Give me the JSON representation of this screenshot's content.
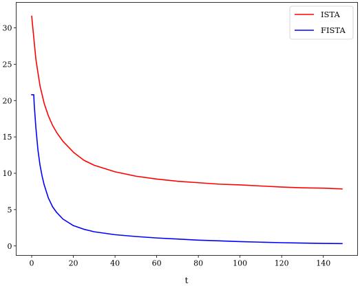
{
  "chart_data": {
    "type": "line",
    "title": "",
    "xlabel": "t",
    "ylabel": "",
    "xlim": [
      -7.45,
      156.45
    ],
    "ylim": [
      -1.3,
      33.5
    ],
    "xticks": [
      0,
      20,
      40,
      60,
      80,
      100,
      120,
      140
    ],
    "yticks": [
      0,
      5,
      10,
      15,
      20,
      25,
      30
    ],
    "grid": false,
    "legend_position": "top-right",
    "series": [
      {
        "name": "ISTA",
        "color": "#ff0000",
        "x": [
          0,
          2,
          4,
          6,
          8,
          10,
          12,
          15,
          20,
          25,
          30,
          40,
          50,
          60,
          70,
          80,
          90,
          100,
          110,
          120,
          130,
          140,
          149
        ],
        "values": [
          31.6,
          25.7,
          22.0,
          19.6,
          17.9,
          16.6,
          15.6,
          14.4,
          12.9,
          11.8,
          11.1,
          10.2,
          9.6,
          9.2,
          8.9,
          8.7,
          8.5,
          8.4,
          8.25,
          8.1,
          8.0,
          7.95,
          7.85
        ]
      },
      {
        "name": "FISTA",
        "color": "#0000ff",
        "x": [
          0,
          1,
          1.2,
          2,
          3,
          4,
          5,
          6,
          8,
          10,
          12,
          15,
          20,
          25,
          30,
          40,
          50,
          60,
          70,
          80,
          90,
          100,
          110,
          120,
          130,
          140,
          149
        ],
        "values": [
          20.8,
          20.8,
          19.5,
          16.3,
          13.2,
          11.1,
          9.6,
          8.4,
          6.6,
          5.4,
          4.6,
          3.7,
          2.8,
          2.3,
          1.95,
          1.55,
          1.3,
          1.1,
          0.95,
          0.8,
          0.7,
          0.6,
          0.52,
          0.45,
          0.4,
          0.35,
          0.33
        ]
      }
    ]
  }
}
